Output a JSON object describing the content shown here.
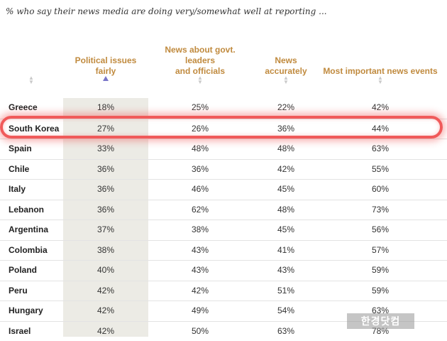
{
  "subtitle": "% who say their news media are doing very/somewhat well at reporting ...",
  "columns": [
    {
      "label": "Political issues fairly",
      "lines": [
        "Political issues",
        "fairly"
      ]
    },
    {
      "label": "News about govt. leaders and officials",
      "lines": [
        "News about govt.",
        "leaders",
        "and officials"
      ]
    },
    {
      "label": "News accurately",
      "lines": [
        "News",
        "accurately"
      ]
    },
    {
      "label": "Most important news events",
      "lines": [
        "Most important news events"
      ]
    }
  ],
  "sort": {
    "column": "Political issues fairly",
    "direction": "ascending"
  },
  "highlighted_row": "South Korea",
  "rows": [
    {
      "country": "Greece",
      "values": [
        "18%",
        "25%",
        "22%",
        "42%"
      ]
    },
    {
      "country": "South Korea",
      "values": [
        "27%",
        "26%",
        "36%",
        "44%"
      ]
    },
    {
      "country": "Spain",
      "values": [
        "33%",
        "48%",
        "48%",
        "63%"
      ]
    },
    {
      "country": "Chile",
      "values": [
        "36%",
        "36%",
        "42%",
        "55%"
      ]
    },
    {
      "country": "Italy",
      "values": [
        "36%",
        "46%",
        "45%",
        "60%"
      ]
    },
    {
      "country": "Lebanon",
      "values": [
        "36%",
        "62%",
        "48%",
        "73%"
      ]
    },
    {
      "country": "Argentina",
      "values": [
        "37%",
        "38%",
        "45%",
        "56%"
      ]
    },
    {
      "country": "Colombia",
      "values": [
        "38%",
        "43%",
        "41%",
        "57%"
      ]
    },
    {
      "country": "Poland",
      "values": [
        "40%",
        "43%",
        "43%",
        "59%"
      ]
    },
    {
      "country": "Peru",
      "values": [
        "42%",
        "42%",
        "51%",
        "59%"
      ]
    },
    {
      "country": "Hungary",
      "values": [
        "42%",
        "49%",
        "54%",
        "63%"
      ]
    },
    {
      "country": "Israel",
      "values": [
        "42%",
        "50%",
        "63%",
        "78%"
      ]
    }
  ],
  "watermark": "한경닷컴",
  "colors": {
    "header_text": "#c08a3e",
    "sorted_column_bg": "#ecebe5",
    "highlight_ring": "#f05a5a",
    "sort_active": "#7a76c9"
  }
}
